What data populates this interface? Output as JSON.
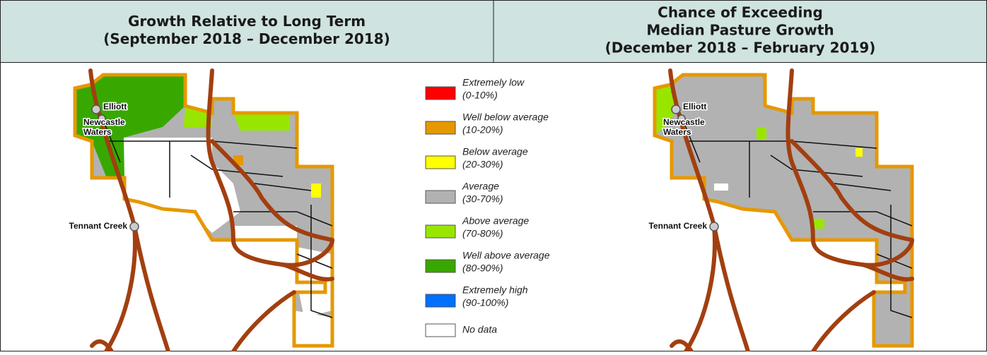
{
  "headers": [
    {
      "lines": [
        "Growth Relative to Long Term",
        "(September 2018 – December 2018)"
      ]
    },
    {
      "lines": [
        "Chance of Exceeding",
        "Median Pasture Growth",
        "(December 2018 – February 2019)"
      ]
    }
  ],
  "legend": [
    {
      "label": "Extremely low",
      "range": "(0-10%)",
      "color": "#ff0000"
    },
    {
      "label": "Well below average",
      "range": "(10-20%)",
      "color": "#e69800"
    },
    {
      "label": "Below average",
      "range": "(20-30%)",
      "color": "#ffff00"
    },
    {
      "label": "Average",
      "range": "(30-70%)",
      "color": "#b2b2b2"
    },
    {
      "label": "Above average",
      "range": "(70-80%)",
      "color": "#98e600"
    },
    {
      "label": "Well above average",
      "range": "(80-90%)",
      "color": "#38a800"
    },
    {
      "label": "Extremely high",
      "range": "(90-100%)",
      "color": "#0070ff"
    },
    {
      "label": "No data",
      "color": "#ffffff"
    }
  ],
  "places": [
    {
      "lines": [
        "Elliott"
      ]
    },
    {
      "lines": [
        "Newcastle",
        "Waters"
      ]
    },
    {
      "lines": [
        "Tennant Creek"
      ]
    }
  ]
}
